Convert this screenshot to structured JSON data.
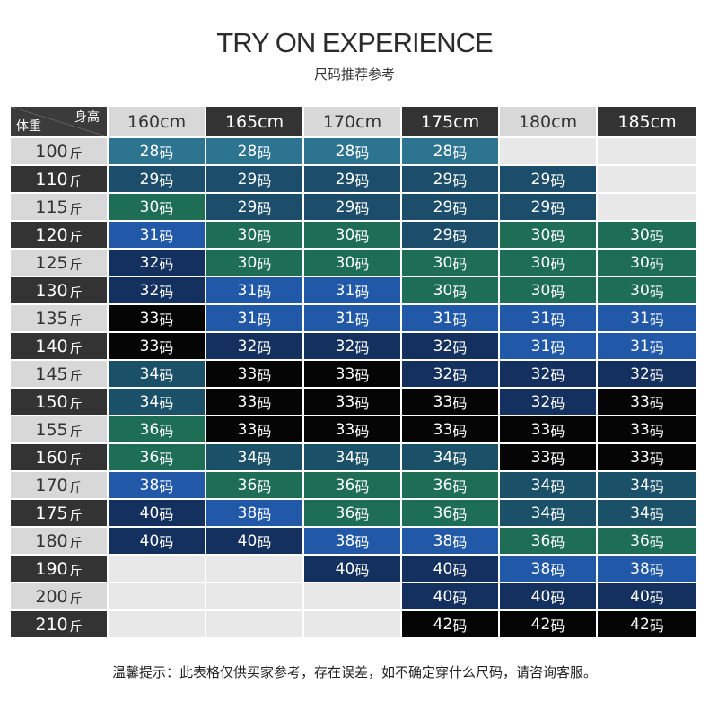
{
  "title": "TRY ON EXPERIENCE",
  "subtitle": "尺码推荐参考",
  "corner": {
    "top": "身高",
    "bottom": "体重"
  },
  "heights": [
    "160cm",
    "165cm",
    "170cm",
    "175cm",
    "180cm",
    "185cm"
  ],
  "weight_unit": "斤",
  "weights": [
    "100",
    "110",
    "115",
    "120",
    "125",
    "130",
    "135",
    "140",
    "145",
    "150",
    "155",
    "160",
    "170",
    "175",
    "180",
    "190",
    "200",
    "210"
  ],
  "size_suffix": "码",
  "sizes": [
    [
      "28",
      "28",
      "28",
      "28",
      "",
      ""
    ],
    [
      "29",
      "29",
      "29",
      "29",
      "29",
      ""
    ],
    [
      "30",
      "29",
      "29",
      "29",
      "29",
      ""
    ],
    [
      "31",
      "30",
      "30",
      "29",
      "30",
      "30"
    ],
    [
      "32",
      "30",
      "30",
      "30",
      "30",
      "30"
    ],
    [
      "32",
      "31",
      "31",
      "30",
      "30",
      "30"
    ],
    [
      "33",
      "31",
      "31",
      "31",
      "31",
      "31"
    ],
    [
      "33",
      "32",
      "32",
      "32",
      "31",
      "31"
    ],
    [
      "34",
      "33",
      "33",
      "32",
      "32",
      "32"
    ],
    [
      "34",
      "33",
      "33",
      "33",
      "32",
      "33"
    ],
    [
      "36",
      "33",
      "33",
      "33",
      "33",
      "33"
    ],
    [
      "36",
      "34",
      "34",
      "34",
      "33",
      "33"
    ],
    [
      "38",
      "36",
      "36",
      "36",
      "34",
      "34"
    ],
    [
      "40",
      "38",
      "36",
      "36",
      "34",
      "34"
    ],
    [
      "40",
      "40",
      "38",
      "38",
      "36",
      "36"
    ],
    [
      "",
      "",
      "40",
      "40",
      "38",
      "38"
    ],
    [
      "",
      "",
      "",
      "40",
      "40",
      "40"
    ],
    [
      "",
      "",
      "",
      "42",
      "42",
      "42"
    ]
  ],
  "size_colors": {
    "28": "#2d7490",
    "29": "#1c4e6b",
    "30": "#1e6e55",
    "31": "#2159a8",
    "32": "#14305f",
    "33": "#050505",
    "34": "#1a5068",
    "36": "#1e6e55",
    "38": "#2159a8",
    "40": "#14305f",
    "42": "#050505",
    "empty": "#e8e8e8"
  },
  "note": "温馨提示：此表格仅供买家参考，存在误差，如不确定穿什么尺码，请咨询客服。"
}
